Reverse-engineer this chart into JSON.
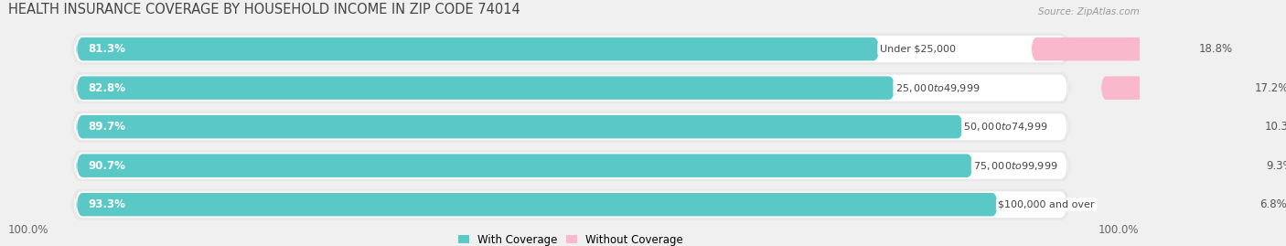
{
  "title": "HEALTH INSURANCE COVERAGE BY HOUSEHOLD INCOME IN ZIP CODE 74014",
  "source": "Source: ZipAtlas.com",
  "categories": [
    "Under $25,000",
    "$25,000 to $49,999",
    "$50,000 to $74,999",
    "$75,000 to $99,999",
    "$100,000 and over"
  ],
  "with_coverage": [
    81.3,
    82.8,
    89.7,
    90.7,
    93.3
  ],
  "without_coverage": [
    18.8,
    17.2,
    10.3,
    9.3,
    6.8
  ],
  "coverage_color": "#5bc8c8",
  "no_coverage_color": "#f07ca0",
  "no_coverage_color_light": "#f9b8cc",
  "row_bg_color": "#e8e8e8",
  "bar_bg_color": "#ffffff",
  "bg_color": "#f0f0f0",
  "legend_labels": [
    "With Coverage",
    "Without Coverage"
  ],
  "left_label": "100.0%",
  "right_label": "100.0%",
  "title_fontsize": 10.5,
  "source_fontsize": 7.5,
  "label_fontsize": 8.5,
  "bar_text_fontsize": 8.5,
  "cat_text_fontsize": 8.0
}
